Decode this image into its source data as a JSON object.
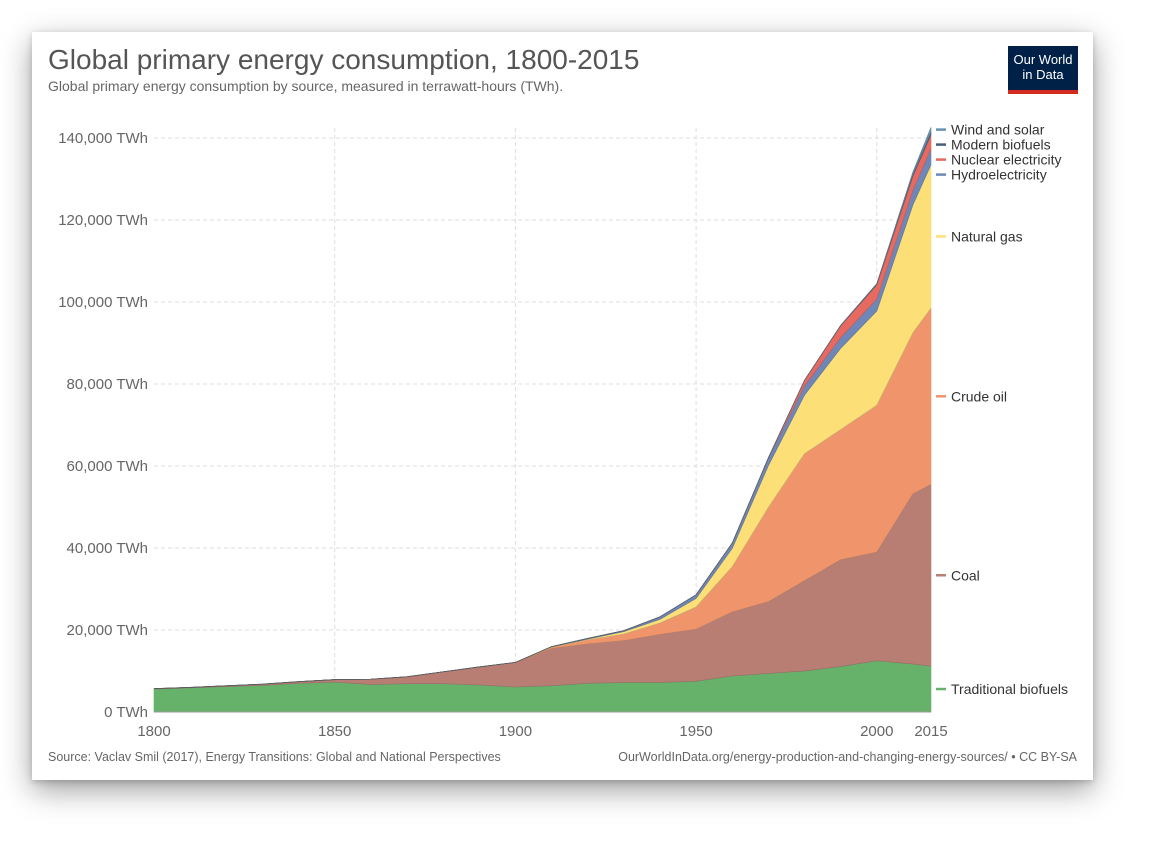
{
  "header": {
    "title": "Global primary energy consumption, 1800-2015",
    "subtitle": "Global primary energy consumption by source, measured in terrawatt-hours (TWh)."
  },
  "logo": {
    "line1": "Our World",
    "line2": "in Data",
    "bg_color": "#002147",
    "accent_color": "#d42b21"
  },
  "footer": {
    "source": "Source: Vaclav Smil (2017), Energy Transitions: Global and National Perspectives",
    "url": "OurWorldInData.org/energy-production-and-changing-energy-sources/ • CC BY-SA"
  },
  "chart_data": {
    "type": "area",
    "stacked": true,
    "title": "Global primary energy consumption, 1800-2015",
    "x": [
      1800,
      1810,
      1820,
      1830,
      1840,
      1850,
      1860,
      1870,
      1880,
      1890,
      1900,
      1910,
      1920,
      1930,
      1940,
      1950,
      1960,
      1970,
      1980,
      1990,
      2000,
      2010,
      2015
    ],
    "x_tick_labels": [
      "1800",
      "1850",
      "1900",
      "1950",
      "2000",
      "2015"
    ],
    "x_ticks": [
      1800,
      1850,
      1900,
      1950,
      2000,
      2015
    ],
    "xlim": [
      1800,
      2015
    ],
    "ylim": [
      0,
      140000
    ],
    "y_ticks": [
      0,
      20000,
      40000,
      60000,
      80000,
      100000,
      120000,
      140000
    ],
    "y_tick_labels": [
      "0 TWh",
      "20,000 TWh",
      "40,000 TWh",
      "60,000 TWh",
      "80,000 TWh",
      "100,000 TWh",
      "120,000 TWh",
      "140,000 TWh"
    ],
    "grid": true,
    "legend_position": "right",
    "series": [
      {
        "name": "Traditional biofuels",
        "color": "#66b26a",
        "values": [
          5600,
          5900,
          6200,
          6500,
          7000,
          7300,
          6700,
          6900,
          6900,
          6600,
          6100,
          6400,
          7000,
          7200,
          7200,
          7500,
          8800,
          9400,
          10000,
          11100,
          12500,
          11700,
          11200
        ]
      },
      {
        "name": "Coal",
        "color": "#b87e74",
        "values": [
          100,
          100,
          200,
          300,
          400,
          600,
          1300,
          1700,
          2900,
          4400,
          5900,
          9100,
          9600,
          10200,
          11700,
          12700,
          15600,
          17500,
          22000,
          26000,
          26500,
          41500,
          44300
        ]
      },
      {
        "name": "Crude oil",
        "color": "#f0956b",
        "values": [
          0,
          0,
          0,
          0,
          0,
          0,
          0,
          0,
          0,
          0,
          100,
          300,
          1000,
          1600,
          2800,
          5400,
          11000,
          23000,
          31000,
          31800,
          35800,
          39300,
          43000
        ]
      },
      {
        "name": "Natural gas",
        "color": "#fddf78",
        "values": [
          0,
          0,
          0,
          0,
          0,
          0,
          0,
          0,
          0,
          0,
          0,
          100,
          200,
          600,
          900,
          2100,
          4500,
          10200,
          14300,
          19800,
          23000,
          31200,
          35000
        ]
      },
      {
        "name": "Hydroelectricity",
        "color": "#6d87b8",
        "values": [
          0,
          0,
          0,
          0,
          0,
          0,
          0,
          0,
          0,
          0,
          0,
          50,
          150,
          250,
          600,
          900,
          1300,
          1800,
          2200,
          2600,
          2900,
          3500,
          3900
        ]
      },
      {
        "name": "Nuclear electricity",
        "color": "#e8695f",
        "values": [
          0,
          0,
          0,
          0,
          0,
          0,
          0,
          0,
          0,
          0,
          0,
          0,
          0,
          0,
          0,
          0,
          0,
          100,
          1400,
          2900,
          3500,
          3500,
          3400
        ]
      },
      {
        "name": "Modern biofuels",
        "color": "#475d80",
        "values": [
          0,
          0,
          0,
          0,
          0,
          0,
          0,
          0,
          0,
          0,
          0,
          0,
          0,
          0,
          0,
          0,
          0,
          0,
          0,
          100,
          200,
          500,
          700
        ]
      },
      {
        "name": "Wind and solar",
        "color": "#6394b4",
        "values": [
          0,
          0,
          0,
          0,
          0,
          0,
          0,
          0,
          0,
          0,
          0,
          0,
          0,
          0,
          0,
          0,
          0,
          0,
          0,
          0,
          100,
          500,
          1100
        ]
      }
    ]
  }
}
